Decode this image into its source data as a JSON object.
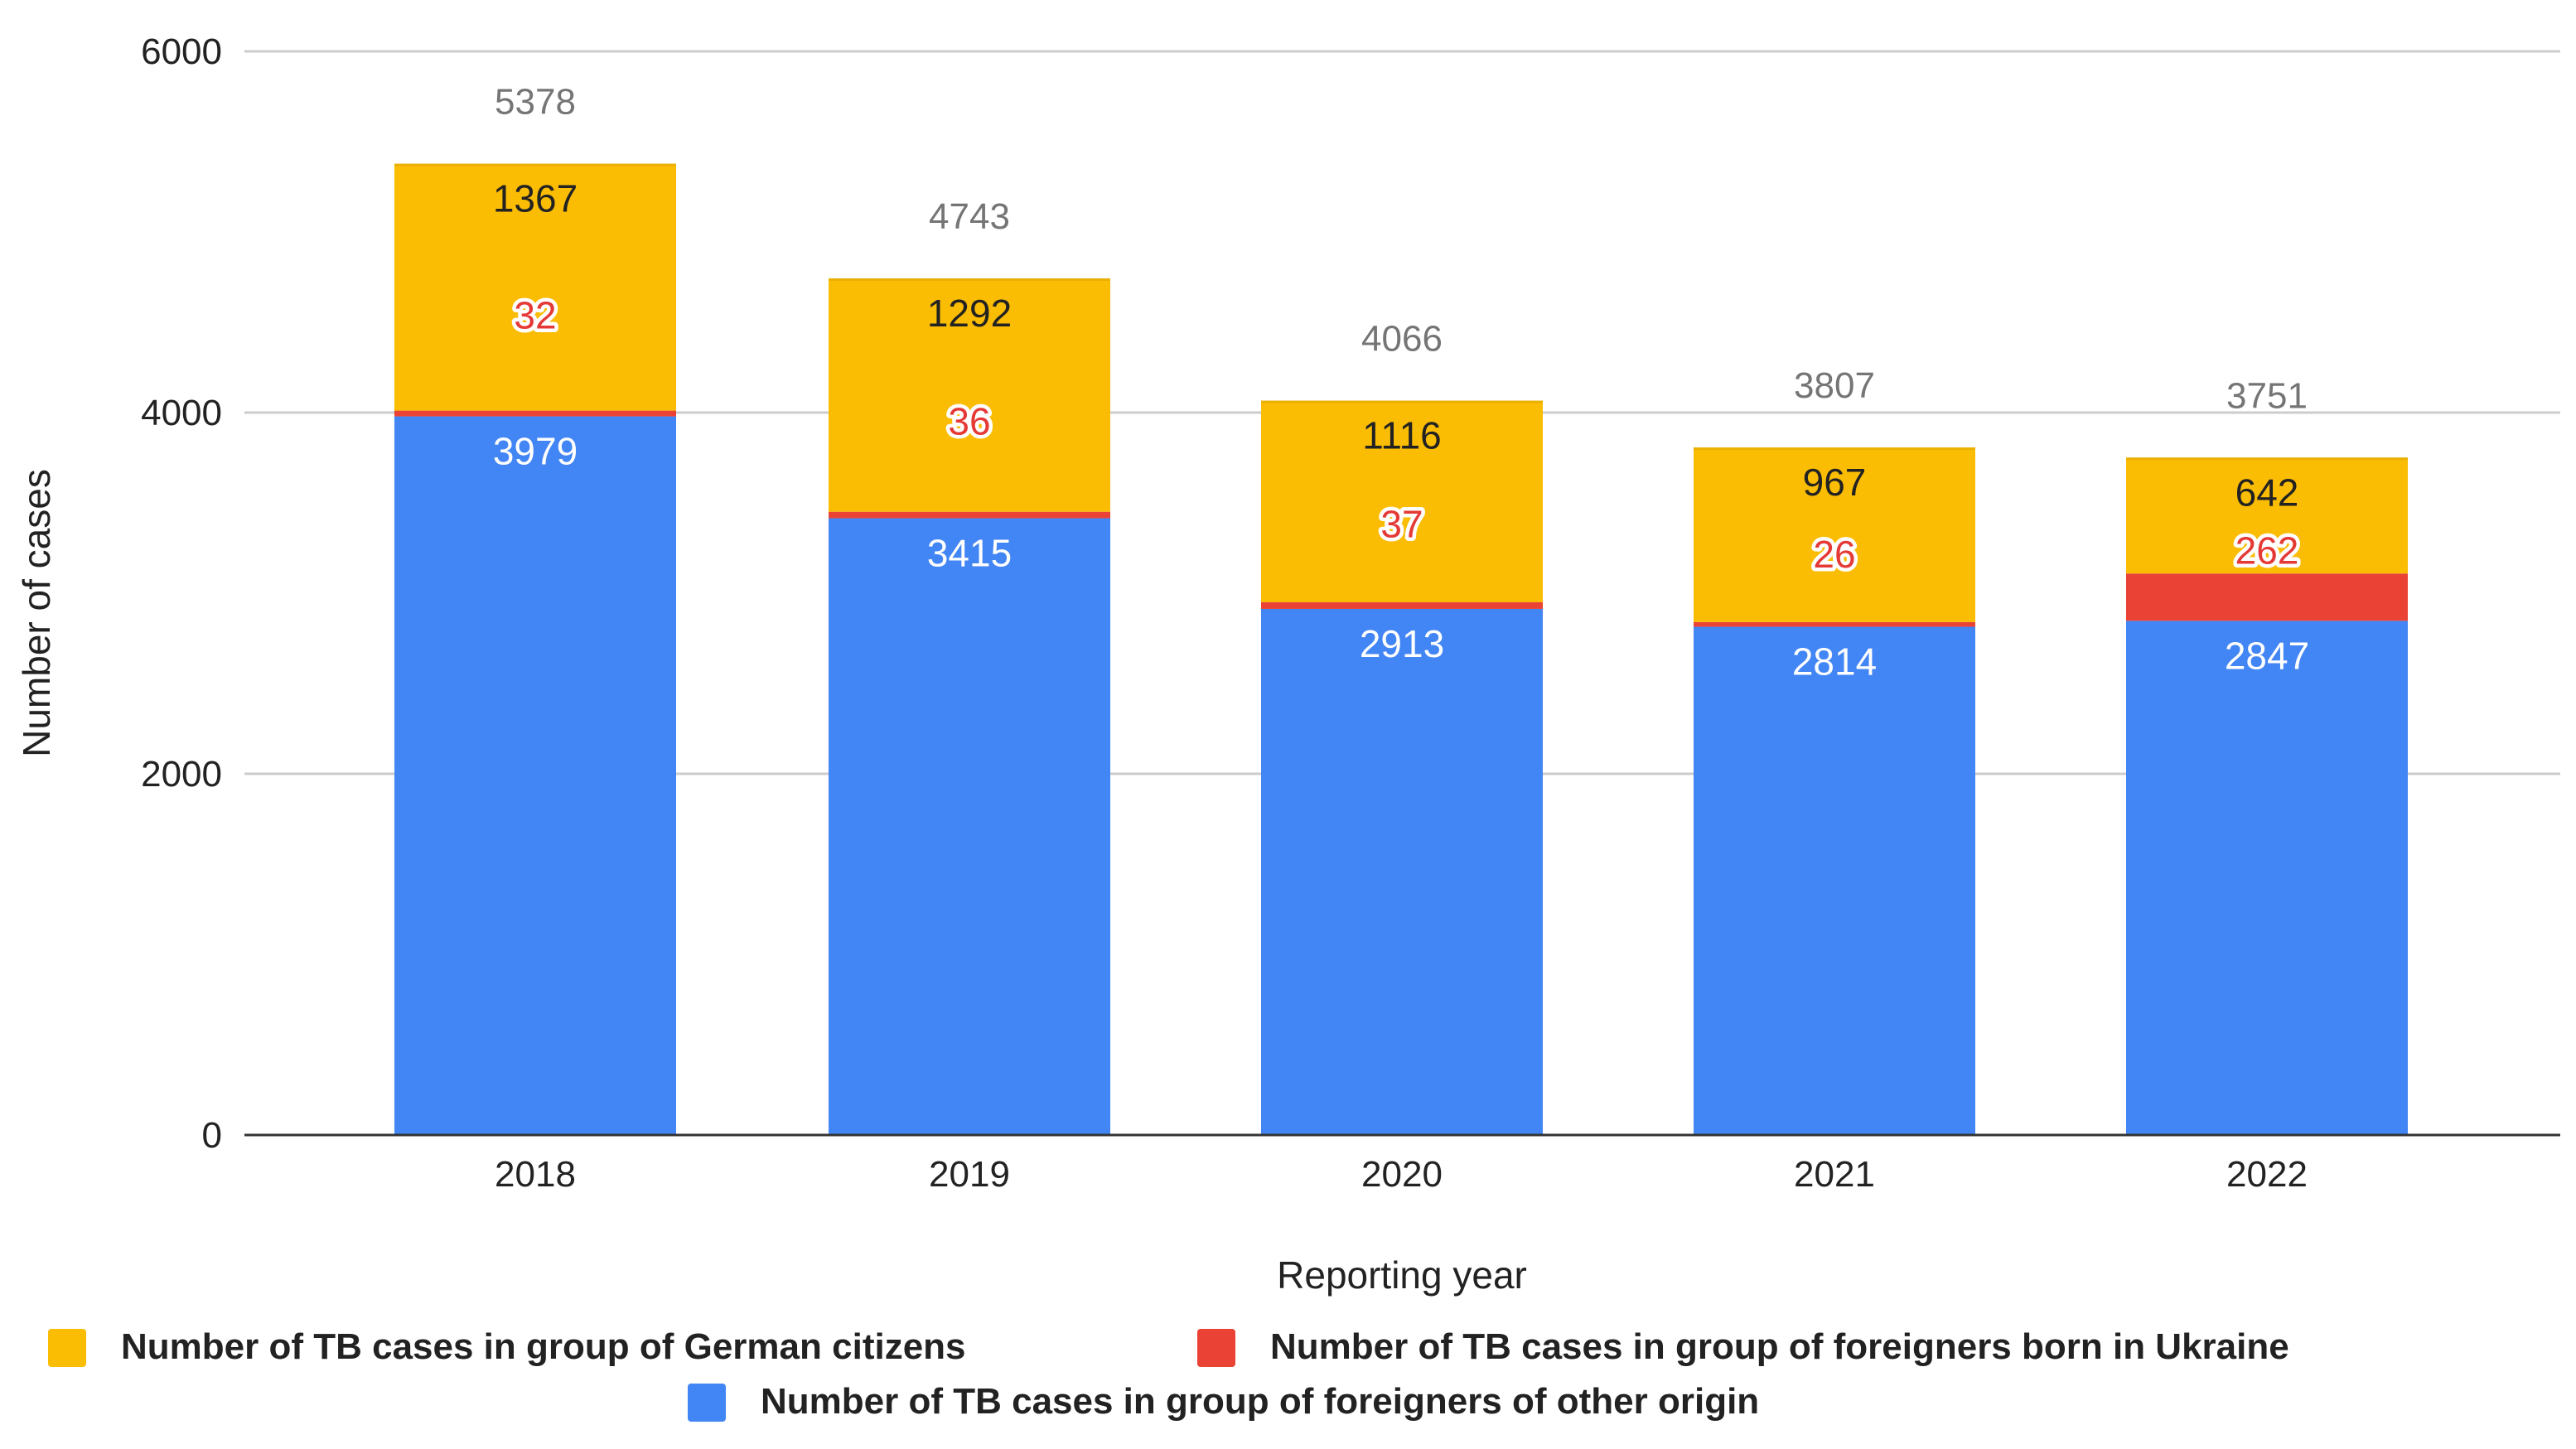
{
  "chart_data": {
    "type": "bar",
    "stacked": true,
    "categories": [
      "2018",
      "2019",
      "2020",
      "2021",
      "2022"
    ],
    "series": [
      {
        "name": "Number of TB cases in group of foreigners of other origin",
        "color": "#4285F4",
        "label_color": "#FFFFFF",
        "values": [
          3979,
          3415,
          2913,
          2814,
          2847
        ]
      },
      {
        "name": "Number of TB cases in group of foreigners born in Ukraine",
        "color": "#EA4335",
        "label_color": "#E53935",
        "values": [
          32,
          36,
          37,
          26,
          262
        ]
      },
      {
        "name": "Number of TB cases in group of German citizens",
        "color": "#FBBC04",
        "label_color": "#222222",
        "values": [
          1367,
          1292,
          1116,
          967,
          642
        ]
      }
    ],
    "totals": [
      5378,
      4743,
      4066,
      3807,
      3751
    ],
    "xlabel": "Reporting year",
    "ylabel": "Number of cases",
    "ylim": [
      0,
      6000
    ],
    "yticks": [
      0,
      2000,
      4000,
      6000
    ],
    "grid": true,
    "legend_position": "bottom",
    "legend_order": [
      "Number of TB cases in group of German citizens",
      "Number of TB cases in group of foreigners born in Ukraine",
      "Number of TB cases in group of foreigners of other origin"
    ]
  }
}
